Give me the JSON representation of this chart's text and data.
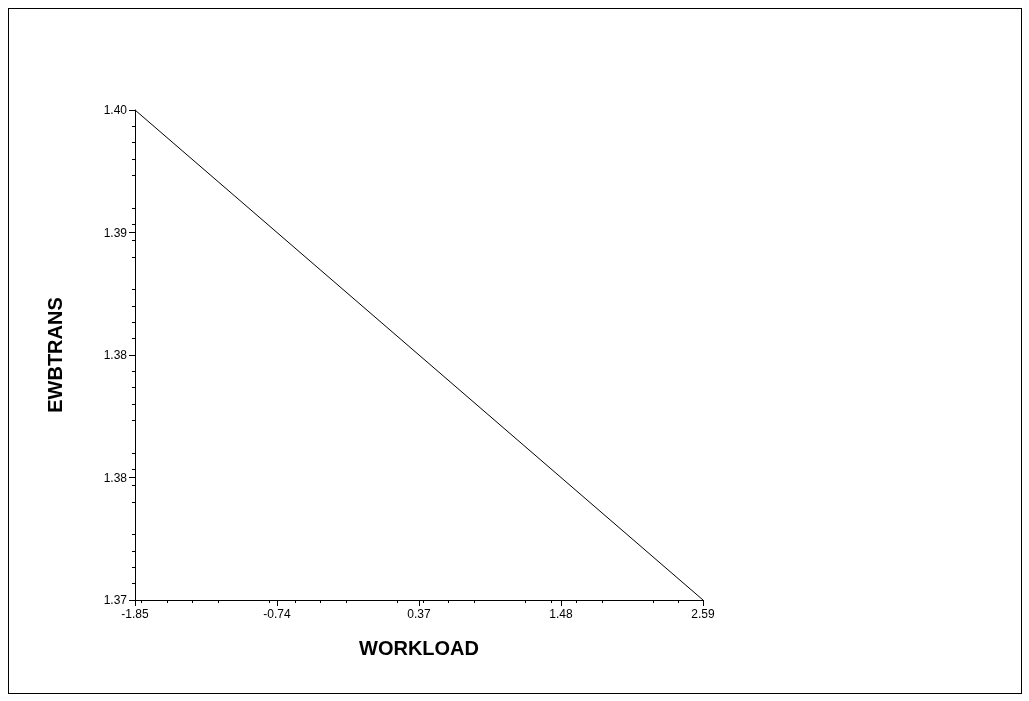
{
  "chart_data": {
    "type": "line",
    "xlabel": "WORKLOAD",
    "ylabel": "EWBTRANS",
    "x": [
      -1.85,
      2.59
    ],
    "series": [
      {
        "color": "#000000",
        "values": [
          1.4,
          1.37
        ]
      }
    ],
    "xlim": [
      -1.85,
      2.59
    ],
    "xticks": [
      -1.85,
      -0.74,
      0.37,
      1.48,
      2.59
    ],
    "ylim": [
      1.37,
      1.4
    ],
    "yticks": [
      {
        "value": 1.37,
        "label": "1.37"
      },
      {
        "value": 1.3775,
        "label": "1.38"
      },
      {
        "value": 1.385,
        "label": "1.38"
      },
      {
        "value": 1.3925,
        "label": "1.39"
      },
      {
        "value": 1.4,
        "label": "1.40"
      }
    ],
    "grid": false
  }
}
